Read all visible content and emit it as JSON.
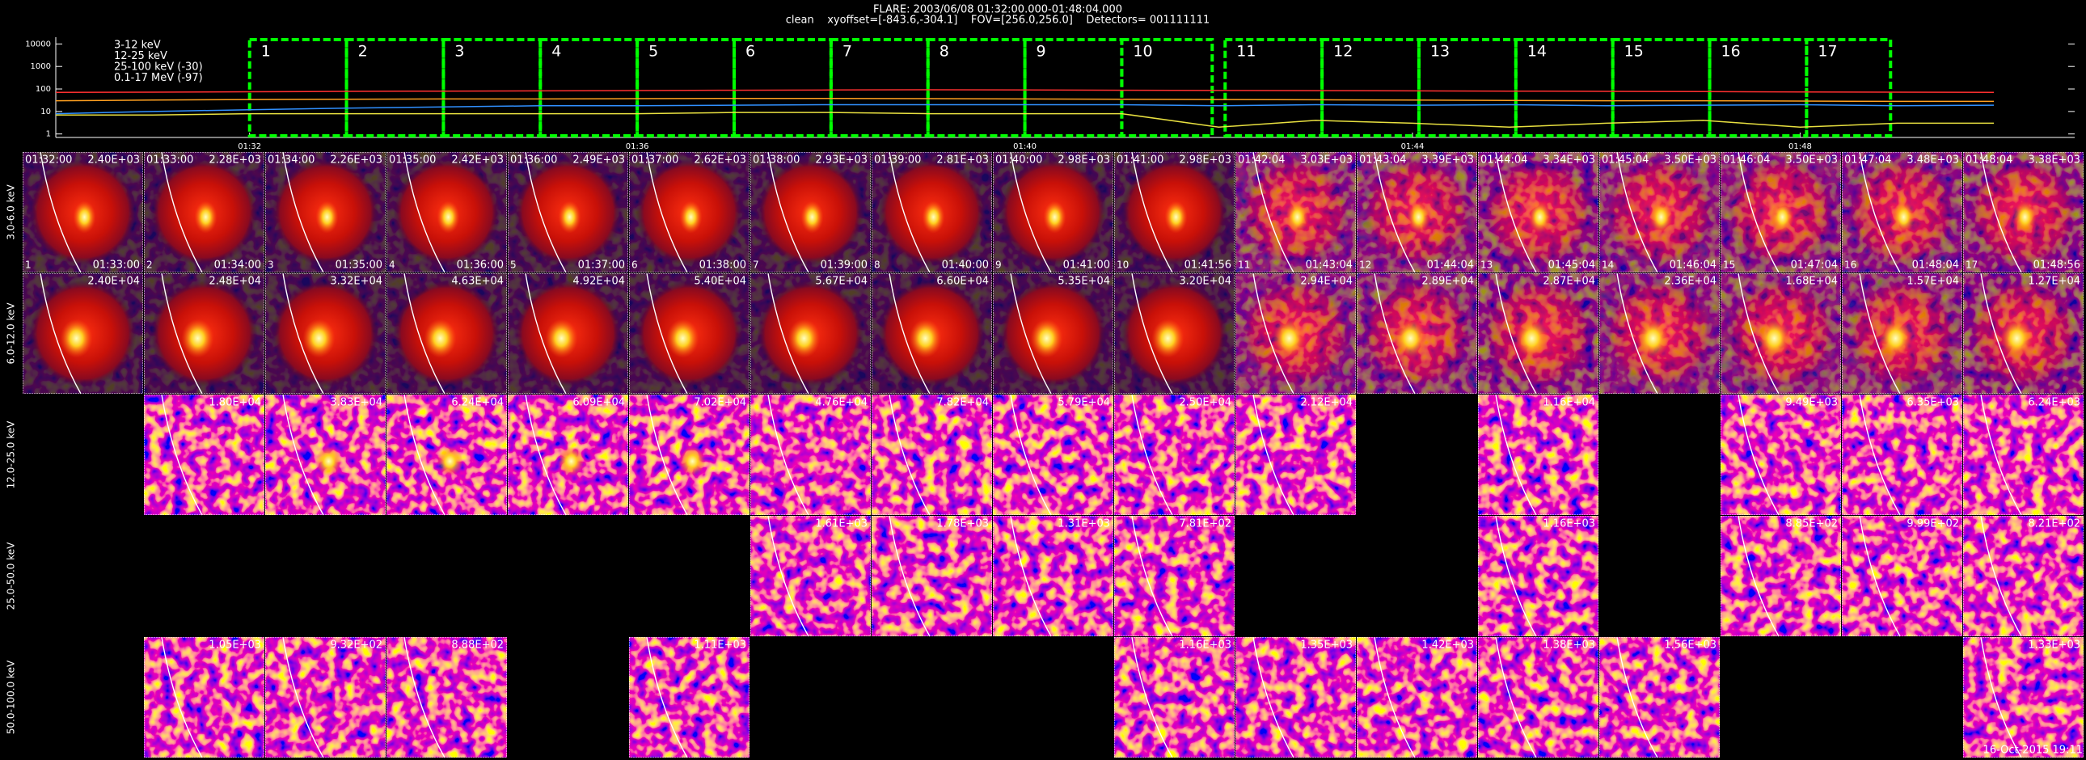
{
  "header": {
    "title": "FLARE: 2003/06/08 01:32:00.000-01:48:04.000",
    "subtitle": "clean    xyoffset=[-843.6,-304.1]    FOV=[256.0,256.0]    Detectors= 001111111"
  },
  "chart_data": {
    "type": "line",
    "x": [
      "01:30:00",
      "01:31:00",
      "01:32:00",
      "01:33:00",
      "01:34:00",
      "01:35:00",
      "01:36:00",
      "01:37:00",
      "01:38:00",
      "01:39:00",
      "01:40:00",
      "01:41:00",
      "01:42:00",
      "01:43:00",
      "01:44:00",
      "01:45:00",
      "01:46:00",
      "01:47:00",
      "01:48:00",
      "01:49:00",
      "01:50:00"
    ],
    "series": [
      {
        "name": "3-12 keV",
        "color": "#ff3030",
        "values": [
          70,
          72,
          75,
          78,
          80,
          82,
          85,
          88,
          90,
          92,
          90,
          88,
          86,
          84,
          82,
          80,
          78,
          76,
          74,
          72,
          70
        ]
      },
      {
        "name": "12-25 keV",
        "color": "#ffa020",
        "values": [
          30,
          32,
          34,
          35,
          36,
          36,
          37,
          38,
          38,
          37,
          36,
          35,
          34,
          33,
          32,
          31,
          30,
          30,
          29,
          28,
          28
        ]
      },
      {
        "name": "25-100 keV (-30)",
        "color": "#e8e040",
        "values": [
          7,
          7,
          8,
          8,
          8,
          8,
          8,
          9,
          9,
          8,
          8,
          8,
          2,
          4,
          3,
          2,
          3,
          4,
          2,
          3,
          3
        ]
      },
      {
        "name": "0.1-17 MeV (-97)",
        "color": "#3090ff",
        "values": [
          8,
          10,
          12,
          14,
          16,
          18,
          18,
          19,
          20,
          20,
          20,
          20,
          18,
          20,
          19,
          20,
          18,
          19,
          20,
          18,
          19
        ]
      }
    ],
    "xlim": [
      "01:30:00",
      "01:50:50"
    ],
    "xticks": [
      "01:32",
      "01:36",
      "01:40",
      "01:44",
      "01:48"
    ],
    "ylim": [
      0.7,
      20000
    ],
    "yticks": [
      1,
      10,
      100,
      1000,
      10000
    ],
    "log_y": true,
    "interval_color": "#00ff00",
    "intervals": [
      {
        "label": "1",
        "start": "01:32:00",
        "end": "01:33:00"
      },
      {
        "label": "2",
        "start": "01:33:00",
        "end": "01:34:00"
      },
      {
        "label": "3",
        "start": "01:34:00",
        "end": "01:35:00"
      },
      {
        "label": "4",
        "start": "01:35:00",
        "end": "01:36:00"
      },
      {
        "label": "5",
        "start": "01:36:00",
        "end": "01:37:00"
      },
      {
        "label": "6",
        "start": "01:37:00",
        "end": "01:38:00"
      },
      {
        "label": "7",
        "start": "01:38:00",
        "end": "01:39:00"
      },
      {
        "label": "8",
        "start": "01:39:00",
        "end": "01:40:00"
      },
      {
        "label": "9",
        "start": "01:40:00",
        "end": "01:41:00"
      },
      {
        "label": "10",
        "start": "01:41:00",
        "end": "01:41:56"
      },
      {
        "label": "11",
        "start": "01:42:04",
        "end": "01:43:04"
      },
      {
        "label": "12",
        "start": "01:43:04",
        "end": "01:44:04"
      },
      {
        "label": "13",
        "start": "01:44:04",
        "end": "01:45:04"
      },
      {
        "label": "14",
        "start": "01:45:04",
        "end": "01:46:04"
      },
      {
        "label": "15",
        "start": "01:46:04",
        "end": "01:47:04"
      },
      {
        "label": "16",
        "start": "01:47:04",
        "end": "01:48:04"
      },
      {
        "label": "17",
        "start": "01:48:04",
        "end": "01:48:56"
      }
    ]
  },
  "image_grid": {
    "rows": [
      {
        "label": "3.0-6.0 keV",
        "peaks": [
          "2.40E+03",
          "2.28E+03",
          "2.26E+03",
          "2.42E+03",
          "2.49E+03",
          "2.62E+03",
          "2.93E+03",
          "2.81E+03",
          "2.98E+03",
          "2.98E+03",
          "3.03E+03",
          "3.39E+03",
          "3.34E+03",
          "3.50E+03",
          "3.50E+03",
          "3.48E+03",
          "3.38E+03"
        ]
      },
      {
        "label": "6.0-12.0 keV",
        "peaks": [
          "2.40E+04",
          "2.48E+04",
          "3.32E+04",
          "4.63E+04",
          "4.92E+04",
          "5.40E+04",
          "5.67E+04",
          "6.60E+04",
          "5.35E+04",
          "3.20E+04",
          "2.94E+04",
          "2.89E+04",
          "2.87E+04",
          "2.36E+04",
          "1.68E+04",
          "1.57E+04",
          "1.27E+04"
        ]
      },
      {
        "label": "12.0-25.0 keV",
        "peaks": [
          null,
          "1.80E+04",
          "3.83E+04",
          "6.24E+04",
          "6.09E+04",
          "7.02E+04",
          "4.76E+04",
          "7.82E+04",
          "5.79E+04",
          "2.50E+04",
          "2.12E+04",
          null,
          "1.16E+04",
          null,
          "9.49E+03",
          "6.35E+03",
          "6.24E+03"
        ]
      },
      {
        "label": "25.0-50.0 keV",
        "peaks": [
          null,
          null,
          null,
          null,
          null,
          null,
          "1.61E+03",
          "1.78E+03",
          "1.31E+03",
          "7.81E+02",
          null,
          null,
          "1.16E+03",
          null,
          "8.85E+02",
          "9.99E+02",
          "8.21E+02"
        ]
      },
      {
        "label": "50.0-100.0 keV",
        "peaks": [
          null,
          "1.05E+03",
          "9.32E+02",
          "8.88E+02",
          null,
          "1.11E+03",
          null,
          null,
          null,
          "1.16E+03",
          "1.35E+03",
          "1.42E+03",
          "1.38E+03",
          "1.56E+03",
          null,
          null,
          "1.33E+03"
        ]
      }
    ],
    "footer": "16-Oct-2015 19:11"
  }
}
